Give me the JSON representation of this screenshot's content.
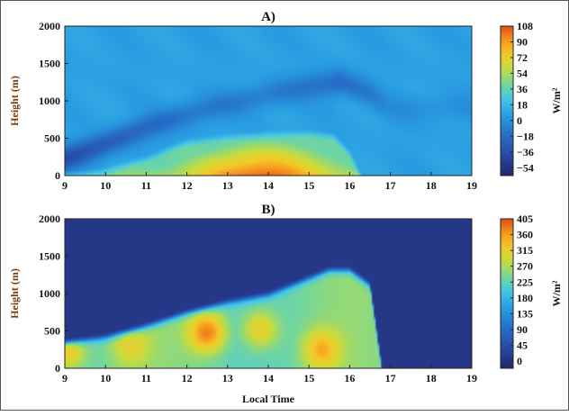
{
  "chart_data": [
    {
      "type": "heatmap",
      "title": "A)",
      "xlabel": "",
      "ylabel": "Height (m)",
      "xlim": [
        9,
        19
      ],
      "ylim": [
        0,
        2000
      ],
      "x_ticks": [
        "9",
        "10",
        "11",
        "12",
        "13",
        "14",
        "15",
        "16",
        "17",
        "18",
        "19"
      ],
      "y_ticks": [
        "0",
        "500",
        "1000",
        "1500",
        "2000"
      ],
      "colorbar": {
        "label": "W/m²",
        "range": [
          -63,
          108
        ],
        "ticks": [
          "108",
          "90",
          "72",
          "54",
          "36",
          "18",
          "0",
          "−18",
          "−36",
          "−54"
        ],
        "tick_values": [
          108,
          90,
          72,
          54,
          36,
          18,
          0,
          -18,
          -36,
          -54
        ]
      },
      "features": {
        "background_value": 8,
        "positive_layer_top": [
          [
            9.0,
            30
          ],
          [
            10.0,
            100
          ],
          [
            11.0,
            260
          ],
          [
            12.0,
            480
          ],
          [
            13.0,
            550
          ],
          [
            14.0,
            590
          ],
          [
            15.0,
            600
          ],
          [
            15.6,
            560
          ],
          [
            16.0,
            330
          ],
          [
            16.3,
            0
          ]
        ],
        "peak_value": 105,
        "negative_band": [
          [
            9.0,
            220,
            -45
          ],
          [
            10.0,
            420,
            -35
          ],
          [
            11.0,
            640,
            -28
          ],
          [
            12.0,
            820,
            -22
          ],
          [
            13.0,
            960,
            -18
          ],
          [
            14.0,
            1080,
            -18
          ],
          [
            15.0,
            1200,
            -22
          ],
          [
            15.8,
            1250,
            -28
          ],
          [
            16.5,
            1100,
            -18
          ],
          [
            17.0,
            900,
            -8
          ]
        ]
      }
    },
    {
      "type": "heatmap",
      "title": "B)",
      "xlabel": "Local Time",
      "ylabel": "Height (m)",
      "xlim": [
        9,
        19
      ],
      "ylim": [
        0,
        2000
      ],
      "x_ticks": [
        "9",
        "10",
        "11",
        "12",
        "13",
        "14",
        "15",
        "16",
        "17",
        "18",
        "19"
      ],
      "y_ticks": [
        "0",
        "500",
        "1000",
        "1500",
        "2000"
      ],
      "colorbar": {
        "label": "W/m²",
        "range": [
          -20,
          405
        ],
        "ticks": [
          "405",
          "360",
          "315",
          "270",
          "225",
          "180",
          "135",
          "90",
          "45",
          "0"
        ],
        "tick_values": [
          405,
          360,
          315,
          270,
          225,
          180,
          135,
          90,
          45,
          0
        ]
      },
      "features": {
        "background_value": 8,
        "mixed_layer_top": [
          [
            9.0,
            380
          ],
          [
            10.0,
            450
          ],
          [
            11.0,
            600
          ],
          [
            12.0,
            780
          ],
          [
            13.0,
            920
          ],
          [
            14.0,
            1020
          ],
          [
            15.0,
            1240
          ],
          [
            15.5,
            1350
          ],
          [
            16.0,
            1350
          ],
          [
            16.5,
            1150
          ],
          [
            16.8,
            0
          ]
        ],
        "core_value": 240,
        "hotspots": [
          [
            9.05,
            230,
            340
          ],
          [
            10.6,
            300,
            300
          ],
          [
            12.5,
            480,
            380
          ],
          [
            13.8,
            520,
            330
          ],
          [
            15.3,
            250,
            340
          ]
        ]
      }
    }
  ]
}
